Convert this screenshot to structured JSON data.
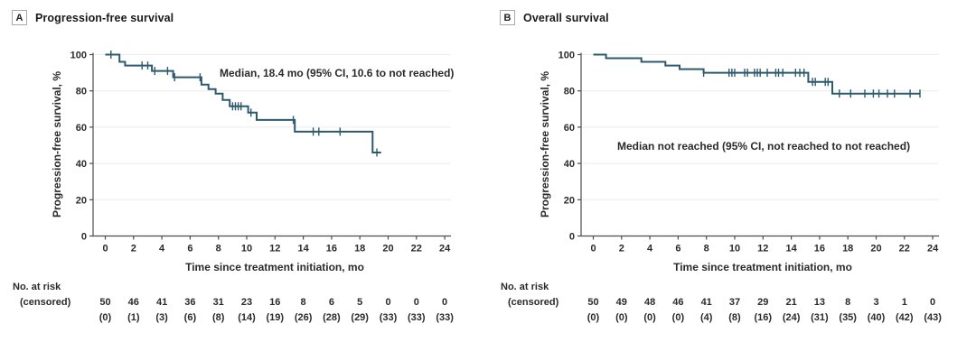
{
  "figure": {
    "background": "#ffffff",
    "text_color": "#2a2a2a",
    "grid_color": "#ececec",
    "axis_color": "#4d4d4d"
  },
  "chart_data": [
    {
      "type": "line",
      "subtype": "kaplan-meier-step",
      "panel_label": "A",
      "title": "Progression-free survival",
      "ylabel": "Progression-free survival, %",
      "xlabel": "Time since treatment initiation, mo",
      "annotation": "Median, 18.4 mo (95% CI, 10.6 to not reached)",
      "line_color": "#2c5a6d",
      "xlim": [
        0,
        24
      ],
      "ylim": [
        0,
        100
      ],
      "xticks": [
        0,
        2,
        4,
        6,
        8,
        10,
        12,
        14,
        16,
        18,
        20,
        22,
        24
      ],
      "yticks": [
        0,
        20,
        40,
        60,
        80,
        100
      ],
      "grid": "horizontal",
      "legend": "none",
      "steps": [
        [
          0,
          100
        ],
        [
          1.0,
          96
        ],
        [
          1.4,
          94
        ],
        [
          3.3,
          91
        ],
        [
          4.8,
          87.5
        ],
        [
          6.8,
          83.5
        ],
        [
          7.3,
          81
        ],
        [
          7.8,
          78.5
        ],
        [
          8.3,
          75
        ],
        [
          8.8,
          71.5
        ],
        [
          10.1,
          68
        ],
        [
          10.7,
          64
        ],
        [
          13.4,
          57.5
        ],
        [
          18.9,
          46
        ]
      ],
      "end_time": 19.5,
      "censors": [
        [
          0.4,
          100
        ],
        [
          2.6,
          94
        ],
        [
          3.0,
          94
        ],
        [
          3.5,
          91
        ],
        [
          4.4,
          91
        ],
        [
          4.9,
          87.5
        ],
        [
          6.7,
          87.5
        ],
        [
          9.0,
          71.5
        ],
        [
          9.2,
          71.5
        ],
        [
          9.4,
          71.5
        ],
        [
          9.6,
          71.5
        ],
        [
          10.3,
          68
        ],
        [
          13.3,
          64
        ],
        [
          14.7,
          57.5
        ],
        [
          15.1,
          57.5
        ],
        [
          16.6,
          57.5
        ],
        [
          19.2,
          46
        ]
      ],
      "risk_header": "No. at risk",
      "risk_subheader": "(censored)",
      "at_risk": [
        50,
        46,
        41,
        36,
        31,
        23,
        16,
        8,
        6,
        5,
        0,
        0,
        0
      ],
      "censored_counts": [
        "(0)",
        "(1)",
        "(3)",
        "(6)",
        "(8)",
        "(14)",
        "(19)",
        "(26)",
        "(28)",
        "(29)",
        "(33)",
        "(33)",
        "(33)"
      ]
    },
    {
      "type": "line",
      "subtype": "kaplan-meier-step",
      "panel_label": "B",
      "title": "Overall survival",
      "ylabel": "Progression-free survival, %",
      "xlabel": "Time since treatment initiation, mo",
      "annotation": "Median not reached (95% CI, not reached to not reached)",
      "line_color": "#2c5a6d",
      "xlim": [
        0,
        24
      ],
      "ylim": [
        0,
        100
      ],
      "xticks": [
        0,
        2,
        4,
        6,
        8,
        10,
        12,
        14,
        16,
        18,
        20,
        22,
        24
      ],
      "yticks": [
        0,
        20,
        40,
        60,
        80,
        100
      ],
      "grid": "horizontal",
      "legend": "none",
      "steps": [
        [
          0,
          100
        ],
        [
          0.9,
          98
        ],
        [
          3.4,
          96
        ],
        [
          5.1,
          94
        ],
        [
          6.1,
          92
        ],
        [
          7.8,
          90
        ],
        [
          15.2,
          85
        ],
        [
          16.9,
          78.5
        ]
      ],
      "end_time": 23.1,
      "censors": [
        [
          7.8,
          90
        ],
        [
          9.6,
          90
        ],
        [
          9.8,
          90
        ],
        [
          10.0,
          90
        ],
        [
          10.7,
          90
        ],
        [
          10.9,
          90
        ],
        [
          11.4,
          90
        ],
        [
          11.6,
          90
        ],
        [
          11.8,
          90
        ],
        [
          12.3,
          90
        ],
        [
          12.9,
          90
        ],
        [
          13.1,
          90
        ],
        [
          13.4,
          90
        ],
        [
          14.3,
          90
        ],
        [
          14.6,
          90
        ],
        [
          14.9,
          90
        ],
        [
          15.5,
          85
        ],
        [
          15.7,
          85
        ],
        [
          16.4,
          85
        ],
        [
          16.6,
          85
        ],
        [
          17.4,
          78.5
        ],
        [
          18.2,
          78.5
        ],
        [
          19.2,
          78.5
        ],
        [
          19.8,
          78.5
        ],
        [
          20.2,
          78.5
        ],
        [
          20.8,
          78.5
        ],
        [
          21.3,
          78.5
        ],
        [
          22.4,
          78.5
        ],
        [
          23.1,
          78.5
        ]
      ],
      "risk_header": "No. at risk",
      "risk_subheader": "(censored)",
      "at_risk": [
        50,
        49,
        48,
        46,
        41,
        37,
        29,
        21,
        13,
        8,
        3,
        1,
        0
      ],
      "censored_counts": [
        "(0)",
        "(0)",
        "(0)",
        "(0)",
        "(4)",
        "(8)",
        "(16)",
        "(24)",
        "(31)",
        "(35)",
        "(40)",
        "(42)",
        "(43)"
      ]
    }
  ]
}
